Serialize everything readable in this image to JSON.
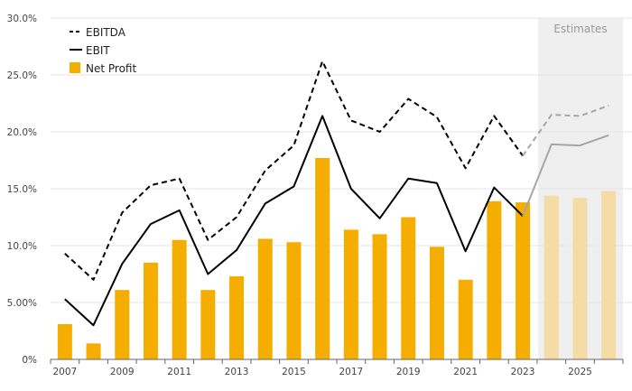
{
  "chart_data": {
    "type": "bar",
    "categories": [
      "2007",
      "2008",
      "2009",
      "2010",
      "2011",
      "2012",
      "2013",
      "2014",
      "2015",
      "2016",
      "2017",
      "2018",
      "2019",
      "2020",
      "2021",
      "2022",
      "2023",
      "2024",
      "2025",
      "2026"
    ],
    "x_tick_labels": [
      "2007",
      "2009",
      "2011",
      "2013",
      "2015",
      "2017",
      "2019",
      "2021",
      "2023",
      "2025"
    ],
    "y_tick_labels": [
      "0%",
      "5.00%",
      "10.0%",
      "15.0%",
      "20.0%",
      "25.0%",
      "30.0%"
    ],
    "ylim": [
      0,
      30
    ],
    "grid": true,
    "legend_position": "top-left",
    "estimates_from": "2024",
    "estimates_label": "Estimates",
    "series": [
      {
        "name": "EBITDA",
        "type": "line",
        "style": "dashed",
        "color": "#000000",
        "values": [
          9.3,
          7.0,
          12.9,
          15.3,
          15.9,
          10.5,
          12.5,
          16.6,
          18.8,
          26.2,
          21.0,
          20.0,
          22.9,
          21.3,
          16.8,
          21.4,
          17.9,
          21.5,
          21.4,
          22.3
        ]
      },
      {
        "name": "EBIT",
        "type": "line",
        "style": "solid",
        "color": "#000000",
        "values": [
          5.3,
          3.0,
          8.4,
          11.9,
          13.1,
          7.5,
          9.6,
          13.7,
          15.2,
          21.4,
          15.0,
          12.4,
          15.9,
          15.5,
          9.5,
          15.1,
          12.6,
          18.9,
          18.8,
          19.7
        ]
      },
      {
        "name": "Net Profit",
        "type": "bar",
        "color": "#f5ad00",
        "values": [
          3.1,
          1.4,
          6.1,
          8.5,
          10.5,
          6.1,
          7.3,
          10.6,
          10.3,
          17.7,
          11.4,
          11.0,
          12.5,
          9.9,
          7.0,
          13.9,
          13.8,
          14.4,
          14.2,
          14.8
        ]
      }
    ]
  },
  "colors": {
    "bar": "#f5ad00",
    "bar_estimate": "#f5dca6",
    "line": "#000000",
    "line_estimate": "#a6a6a6",
    "estimate_band": "#efefef",
    "grid": "#e6e6e6"
  }
}
